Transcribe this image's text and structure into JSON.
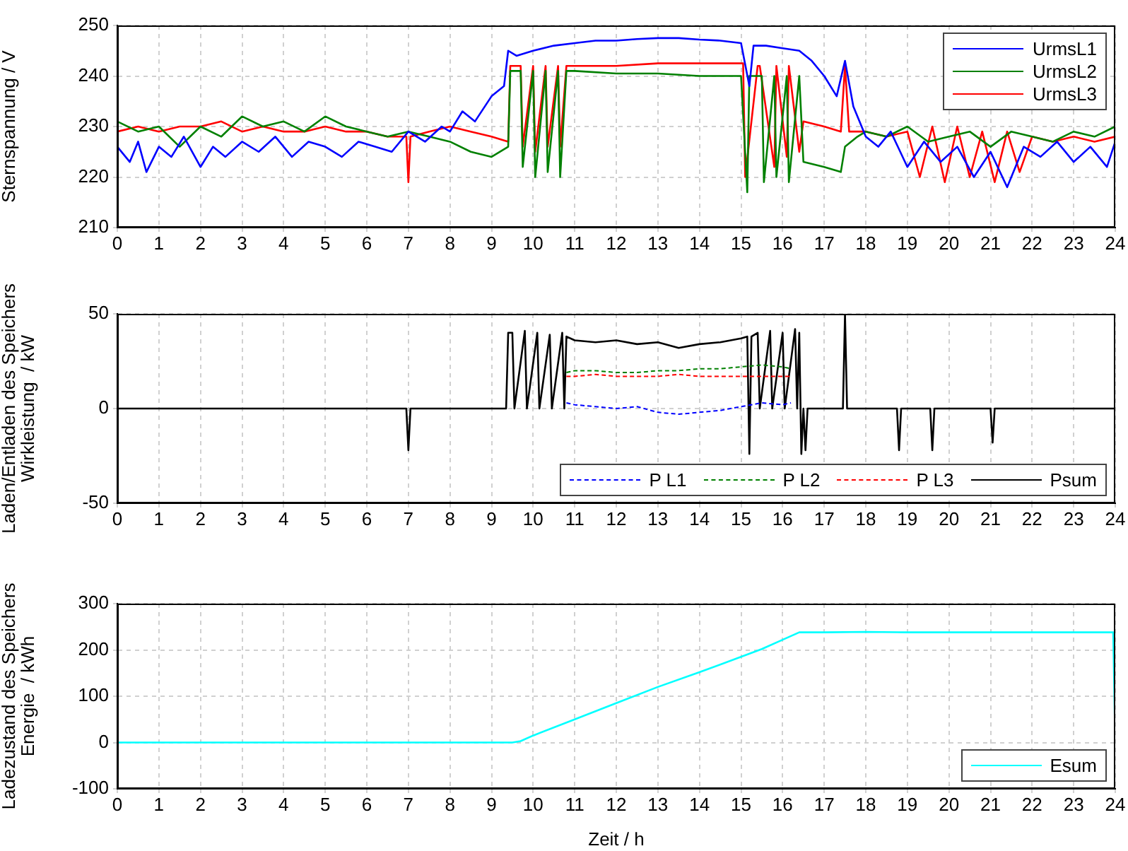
{
  "chart_data": [
    {
      "type": "line",
      "ylabel": "Sternspannung / V",
      "xlim": [
        0,
        24
      ],
      "xticks": [
        0,
        1,
        2,
        3,
        4,
        5,
        6,
        7,
        8,
        9,
        10,
        11,
        12,
        13,
        14,
        15,
        16,
        17,
        18,
        19,
        20,
        21,
        22,
        23,
        24
      ],
      "ylim": [
        210,
        250
      ],
      "yticks": [
        210,
        220,
        230,
        240,
        250
      ],
      "grid": true,
      "legend": "top right",
      "marker": "none",
      "series": [
        {
          "name": "UrmsL1",
          "color": "#0000ff",
          "x": [
            0,
            0.3,
            0.5,
            0.7,
            1,
            1.3,
            1.6,
            2,
            2.3,
            2.6,
            3,
            3.4,
            3.8,
            4.2,
            4.6,
            5,
            5.4,
            5.8,
            6.2,
            6.6,
            7,
            7.4,
            7.8,
            8,
            8.3,
            8.6,
            9,
            9.3,
            9.4,
            9.6,
            10,
            10.5,
            11,
            11.5,
            12,
            12.5,
            13,
            13.5,
            14,
            14.5,
            15,
            15.2,
            15.3,
            15.6,
            16,
            16.4,
            16.7,
            17,
            17.3,
            17.5,
            17.7,
            18,
            18.3,
            18.6,
            19,
            19.4,
            19.8,
            20.2,
            20.6,
            21,
            21.4,
            21.8,
            22.2,
            22.6,
            23,
            23.4,
            23.8,
            24
          ],
          "values": [
            226,
            223,
            227,
            221,
            226,
            224,
            228,
            222,
            226,
            224,
            227,
            225,
            228,
            224,
            227,
            226,
            224,
            227,
            226,
            225,
            229,
            227,
            230,
            229,
            233,
            231,
            236,
            238,
            245,
            244,
            245,
            246,
            246.5,
            247,
            247,
            247.3,
            247.5,
            247.5,
            247.2,
            247,
            246.5,
            238,
            246,
            246,
            245.5,
            245,
            243,
            240,
            236,
            243,
            234,
            228,
            226,
            229,
            222,
            227,
            223,
            226,
            220,
            225,
            218,
            226,
            224,
            227,
            223,
            226,
            222,
            227
          ]
        },
        {
          "name": "UrmsL2",
          "color": "#008000",
          "x": [
            0,
            0.5,
            1,
            1.5,
            2,
            2.5,
            3,
            3.5,
            4,
            4.5,
            5,
            5.5,
            6,
            6.5,
            7,
            7.5,
            8,
            8.5,
            9,
            9.4,
            9.45,
            9.7,
            9.75,
            10,
            10.05,
            10.3,
            10.35,
            10.6,
            10.65,
            10.8,
            10.85,
            11,
            12,
            13,
            14,
            15,
            15.15,
            15.2,
            15.5,
            15.55,
            15.8,
            15.85,
            16.1,
            16.15,
            16.4,
            16.5,
            17,
            17.4,
            17.5,
            17.8,
            18,
            18.5,
            19,
            19.5,
            20,
            20.5,
            21,
            21.5,
            22,
            22.5,
            23,
            23.5,
            24
          ],
          "values": [
            231,
            229,
            230,
            226,
            230,
            228,
            232,
            230,
            231,
            229,
            232,
            230,
            229,
            228,
            229,
            228,
            227,
            225,
            224,
            226,
            241,
            241,
            222,
            241,
            220,
            241,
            221,
            241,
            220,
            241,
            241,
            241,
            240.5,
            240.5,
            240,
            240,
            217,
            240,
            240,
            219,
            240,
            220,
            240,
            219,
            240,
            223,
            222,
            221,
            226,
            228,
            229,
            228,
            230,
            227,
            228,
            229,
            226,
            229,
            228,
            227,
            229,
            228,
            230
          ]
        },
        {
          "name": "UrmsL3",
          "color": "#ff0000",
          "x": [
            0,
            0.5,
            1,
            1.5,
            2,
            2.5,
            3,
            3.5,
            4,
            4.5,
            5,
            5.5,
            6,
            6.5,
            6.95,
            7,
            7.05,
            7.5,
            8,
            8.5,
            9,
            9.4,
            9.45,
            9.7,
            9.75,
            10,
            10.05,
            10.3,
            10.35,
            10.6,
            10.65,
            10.8,
            11,
            12,
            13,
            14,
            15,
            15.05,
            15.1,
            15.4,
            15.45,
            15.8,
            15.85,
            16.1,
            16.15,
            16.4,
            16.5,
            17,
            17.4,
            17.5,
            17.6,
            18,
            18.5,
            19,
            19.3,
            19.6,
            19.9,
            20.2,
            20.5,
            20.8,
            21.1,
            21.4,
            21.7,
            22,
            22.5,
            23,
            23.5,
            24
          ],
          "values": [
            229,
            230,
            229,
            230,
            230,
            231,
            229,
            230,
            229,
            229,
            230,
            229,
            229,
            228,
            228,
            219,
            228,
            229,
            230,
            229,
            228,
            227,
            242,
            242,
            226,
            242,
            225,
            242,
            226,
            242,
            226,
            242,
            242,
            242,
            242.5,
            242.5,
            242.5,
            242.5,
            220,
            242,
            242,
            222,
            242,
            224,
            242,
            225,
            231,
            230,
            229,
            242,
            229,
            229,
            228,
            229,
            220,
            230,
            219,
            230,
            220,
            229,
            219,
            229,
            221,
            228,
            227,
            228,
            227,
            228
          ]
        }
      ]
    },
    {
      "type": "line",
      "ylabel": "Laden/Entladen des Speichers\nWirkleistung  / kW",
      "xlim": [
        0,
        24
      ],
      "xticks": [
        0,
        1,
        2,
        3,
        4,
        5,
        6,
        7,
        8,
        9,
        10,
        11,
        12,
        13,
        14,
        15,
        16,
        17,
        18,
        19,
        20,
        21,
        22,
        23,
        24
      ],
      "ylim": [
        -50,
        50
      ],
      "yticks": [
        -50,
        0,
        50
      ],
      "grid": true,
      "legend": "bottom right",
      "marker": "none",
      "series": [
        {
          "name": "P L1",
          "color": "#0000ff",
          "line_style": "dashed",
          "x": [
            10.8,
            11,
            11.5,
            12,
            12.5,
            13,
            13.5,
            14,
            14.5,
            15,
            15.5,
            16,
            16.2
          ],
          "values": [
            3,
            2,
            1,
            0,
            1,
            -2,
            -3,
            -2,
            -1,
            1,
            3,
            2,
            3
          ]
        },
        {
          "name": "P L2",
          "color": "#008000",
          "line_style": "dashed",
          "x": [
            10.8,
            11,
            11.5,
            12,
            12.5,
            13,
            13.5,
            14,
            14.5,
            15,
            15.5,
            16,
            16.2
          ],
          "values": [
            19,
            20,
            20,
            19,
            19,
            20,
            20,
            21,
            21,
            22,
            23,
            22,
            21
          ]
        },
        {
          "name": "P L3",
          "color": "#ff0000",
          "line_style": "dashed",
          "x": [
            10.8,
            11,
            11.5,
            12,
            12.5,
            13,
            13.5,
            14,
            14.5,
            15,
            15.5,
            16,
            16.2
          ],
          "values": [
            17,
            17,
            18,
            17,
            17,
            17,
            18,
            17,
            17,
            17,
            17,
            17,
            17
          ]
        },
        {
          "name": "Psum",
          "color": "#000000",
          "line_style": "solid",
          "x": [
            0,
            6.95,
            7,
            7.05,
            9.35,
            9.4,
            9.5,
            9.55,
            9.8,
            9.85,
            10.1,
            10.15,
            10.4,
            10.45,
            10.7,
            10.75,
            10.8,
            11,
            11.5,
            12,
            12.5,
            13,
            13.5,
            14,
            14.5,
            15,
            15.15,
            15.2,
            15.25,
            15.4,
            15.45,
            15.7,
            15.75,
            16,
            16.05,
            16.3,
            16.35,
            16.4,
            16.45,
            16.5,
            16.55,
            16.6,
            17.45,
            17.5,
            17.55,
            18.75,
            18.8,
            18.85,
            19.55,
            19.6,
            19.65,
            21,
            21.05,
            21.1,
            24
          ],
          "values": [
            0,
            0,
            -22,
            0,
            0,
            40,
            40,
            0,
            41,
            0,
            40,
            0,
            39,
            0,
            40,
            0,
            38,
            36,
            35,
            36,
            34,
            35,
            32,
            34,
            35,
            37,
            38,
            -24,
            38,
            40,
            0,
            41,
            0,
            40,
            0,
            42,
            0,
            40,
            -24,
            0,
            -22,
            0,
            0,
            50,
            0,
            0,
            -22,
            0,
            0,
            -22,
            0,
            0,
            -18,
            0,
            0
          ]
        }
      ]
    },
    {
      "type": "line",
      "ylabel": "Ladezustand des Speichers\nEnergie  / kWh",
      "xlabel": "Zeit / h",
      "xlim": [
        0,
        24
      ],
      "xticks": [
        0,
        1,
        2,
        3,
        4,
        5,
        6,
        7,
        8,
        9,
        10,
        11,
        12,
        13,
        14,
        15,
        16,
        17,
        18,
        19,
        20,
        21,
        22,
        23,
        24
      ],
      "ylim": [
        -100,
        300
      ],
      "yticks": [
        -100,
        0,
        100,
        200,
        300
      ],
      "grid": true,
      "legend": "bottom right",
      "marker": "none",
      "series": [
        {
          "name": "Esum",
          "color": "#00ffff",
          "x": [
            0,
            9.5,
            9.7,
            10,
            11,
            12,
            13,
            14,
            15,
            15.5,
            16,
            16.4,
            17,
            18,
            19,
            20,
            21,
            22,
            23,
            23.95,
            24
          ],
          "values": [
            0,
            0,
            3,
            15,
            50,
            85,
            120,
            152,
            185,
            202,
            222,
            238,
            238,
            239,
            238,
            238,
            238,
            238,
            238,
            238,
            0
          ]
        }
      ]
    }
  ]
}
